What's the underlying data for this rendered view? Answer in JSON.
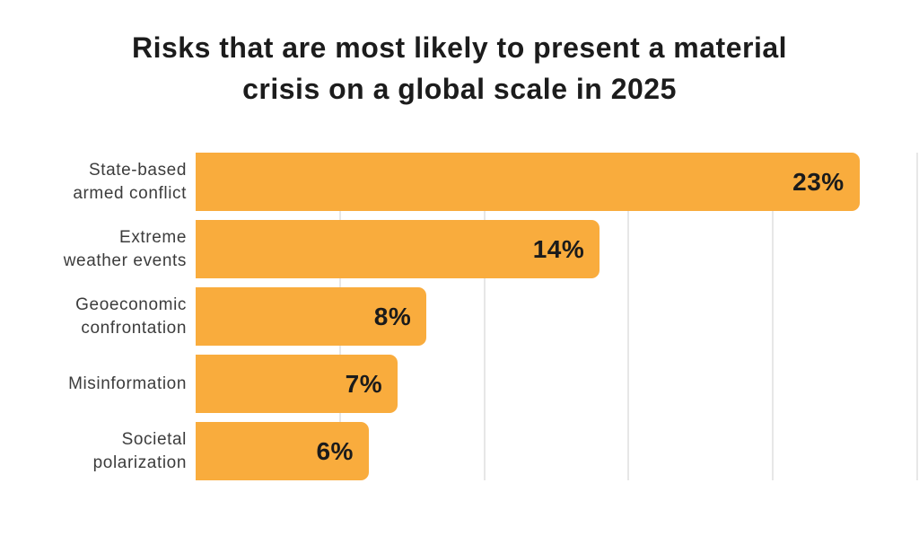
{
  "title": {
    "line1": "Risks that are most likely to present a material",
    "line2": "crisis on a global scale in 2025"
  },
  "chart_data": {
    "type": "bar",
    "orientation": "horizontal",
    "title": "Risks that are most likely to present a material crisis on a global scale in 2025",
    "categories": [
      "State-based\narmed conflict",
      "Extreme\nweather events",
      "Geoeconomic\nconfrontation",
      "Misinformation",
      "Societal\npolarization"
    ],
    "values": [
      23,
      14,
      8,
      7,
      6
    ],
    "value_labels": [
      "23%",
      "14%",
      "8%",
      "7%",
      "6%"
    ],
    "xlabel": "",
    "ylabel": "",
    "xlim": [
      0,
      25
    ],
    "grid_step": 5,
    "grid": true,
    "legend": false,
    "value_label_position": "inside-end",
    "colors": {
      "bar": "#F9AC3D",
      "value_text": "#1b1b1b",
      "category_text": "#3c3c3c",
      "title_text": "#1c1c1c",
      "gridline": "#e7e7e7",
      "background": "#ffffff"
    }
  }
}
